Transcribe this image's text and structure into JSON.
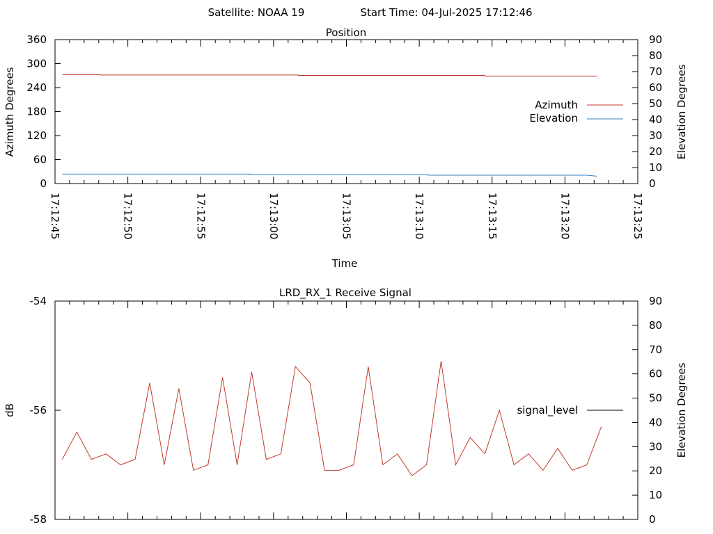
{
  "header": {
    "satellite": "Satellite: NOAA 19",
    "start_time": "Start Time: 04-Jul-2025 17:12:46"
  },
  "colors": {
    "azimuth": "#c0392b",
    "elevation": "#2f7ebd",
    "signal": "#c0392b",
    "legend_signal": "#000000"
  },
  "chart_data": [
    {
      "type": "line",
      "title": "Position",
      "xlabel": "Time",
      "ylabel": "Azimuth Degrees",
      "y2label": "Elevation Degrees",
      "xlim": [
        "17:12:45",
        "17:13:25"
      ],
      "x_ticks": [
        "17:12:45",
        "17:12:50",
        "17:12:55",
        "17:13:00",
        "17:13:05",
        "17:13:10",
        "17:13:15",
        "17:13:20",
        "17:13:25"
      ],
      "ylim": [
        0,
        360
      ],
      "y_ticks": [
        "0",
        "60",
        "120",
        "180",
        "240",
        "300",
        "360"
      ],
      "y2lim": [
        0,
        90
      ],
      "y2_ticks": [
        "0",
        "10",
        "20",
        "30",
        "40",
        "50",
        "60",
        "70",
        "80",
        "90"
      ],
      "legend_position": "right",
      "series": [
        {
          "name": "Azimuth",
          "axis": "left",
          "x": [
            "17:12:45.5",
            "17:12:48.1",
            "17:12:48.1",
            "17:13:01.7",
            "17:13:01.7",
            "17:13:14.5",
            "17:13:14.5",
            "17:13:22.2"
          ],
          "y": [
            272.5,
            272.5,
            271.5,
            271.5,
            270.5,
            270.5,
            269,
            269
          ]
        },
        {
          "name": "Elevation",
          "axis": "right",
          "x": [
            "17:12:45.5",
            "17:12:58.4",
            "17:12:58.4",
            "17:13:10.6",
            "17:13:10.6",
            "17:13:21.5",
            "17:13:22.2"
          ],
          "y": [
            5.9,
            5.9,
            5.6,
            5.6,
            5.2,
            5.2,
            4.6
          ]
        }
      ]
    },
    {
      "type": "line",
      "title": "LRD_RX_1 Receive Signal",
      "ylabel": "dB",
      "y2label": "Elevation Degrees",
      "ylim": [
        -58,
        -54
      ],
      "y_ticks": [
        "-58",
        "-56",
        "-54"
      ],
      "y2lim": [
        0,
        90
      ],
      "y2_ticks": [
        "0",
        "10",
        "20",
        "30",
        "40",
        "50",
        "60",
        "70",
        "80",
        "90"
      ],
      "legend_position": "right",
      "series": [
        {
          "name": "signal_level",
          "x": [
            "17:12:45.5",
            "17:12:46.5",
            "17:12:47.5",
            "17:12:48.5",
            "17:12:49.5",
            "17:12:50.5",
            "17:12:51.5",
            "17:12:52.5",
            "17:12:53.5",
            "17:12:54.5",
            "17:12:55.5",
            "17:12:56.5",
            "17:12:57.5",
            "17:12:58.5",
            "17:12:59.5",
            "17:13:00.5",
            "17:13:01.5",
            "17:13:02.5",
            "17:13:03.5",
            "17:13:04.5",
            "17:13:05.5",
            "17:13:06.5",
            "17:13:07.5",
            "17:13:08.5",
            "17:13:09.5",
            "17:13:10.5",
            "17:13:11.5",
            "17:13:12.5",
            "17:13:13.5",
            "17:13:14.5",
            "17:13:15.5",
            "17:13:16.5",
            "17:13:17.5",
            "17:13:18.5",
            "17:13:19.5",
            "17:13:20.5",
            "17:13:21.5",
            "17:13:22.5"
          ],
          "values": [
            -56.9,
            -56.4,
            -56.9,
            -56.8,
            -57.0,
            -56.9,
            -55.5,
            -57.0,
            -55.6,
            -57.1,
            -57.0,
            -55.4,
            -57.0,
            -55.3,
            -56.9,
            -56.8,
            -55.2,
            -55.5,
            -57.1,
            -57.1,
            -57.0,
            -55.2,
            -57.0,
            -56.8,
            -57.2,
            -57.0,
            -55.1,
            -57.0,
            -56.5,
            -56.8,
            -56.0,
            -57.0,
            -56.8,
            -57.1,
            -56.7,
            -57.1,
            -57.0,
            -56.3
          ]
        }
      ]
    }
  ]
}
